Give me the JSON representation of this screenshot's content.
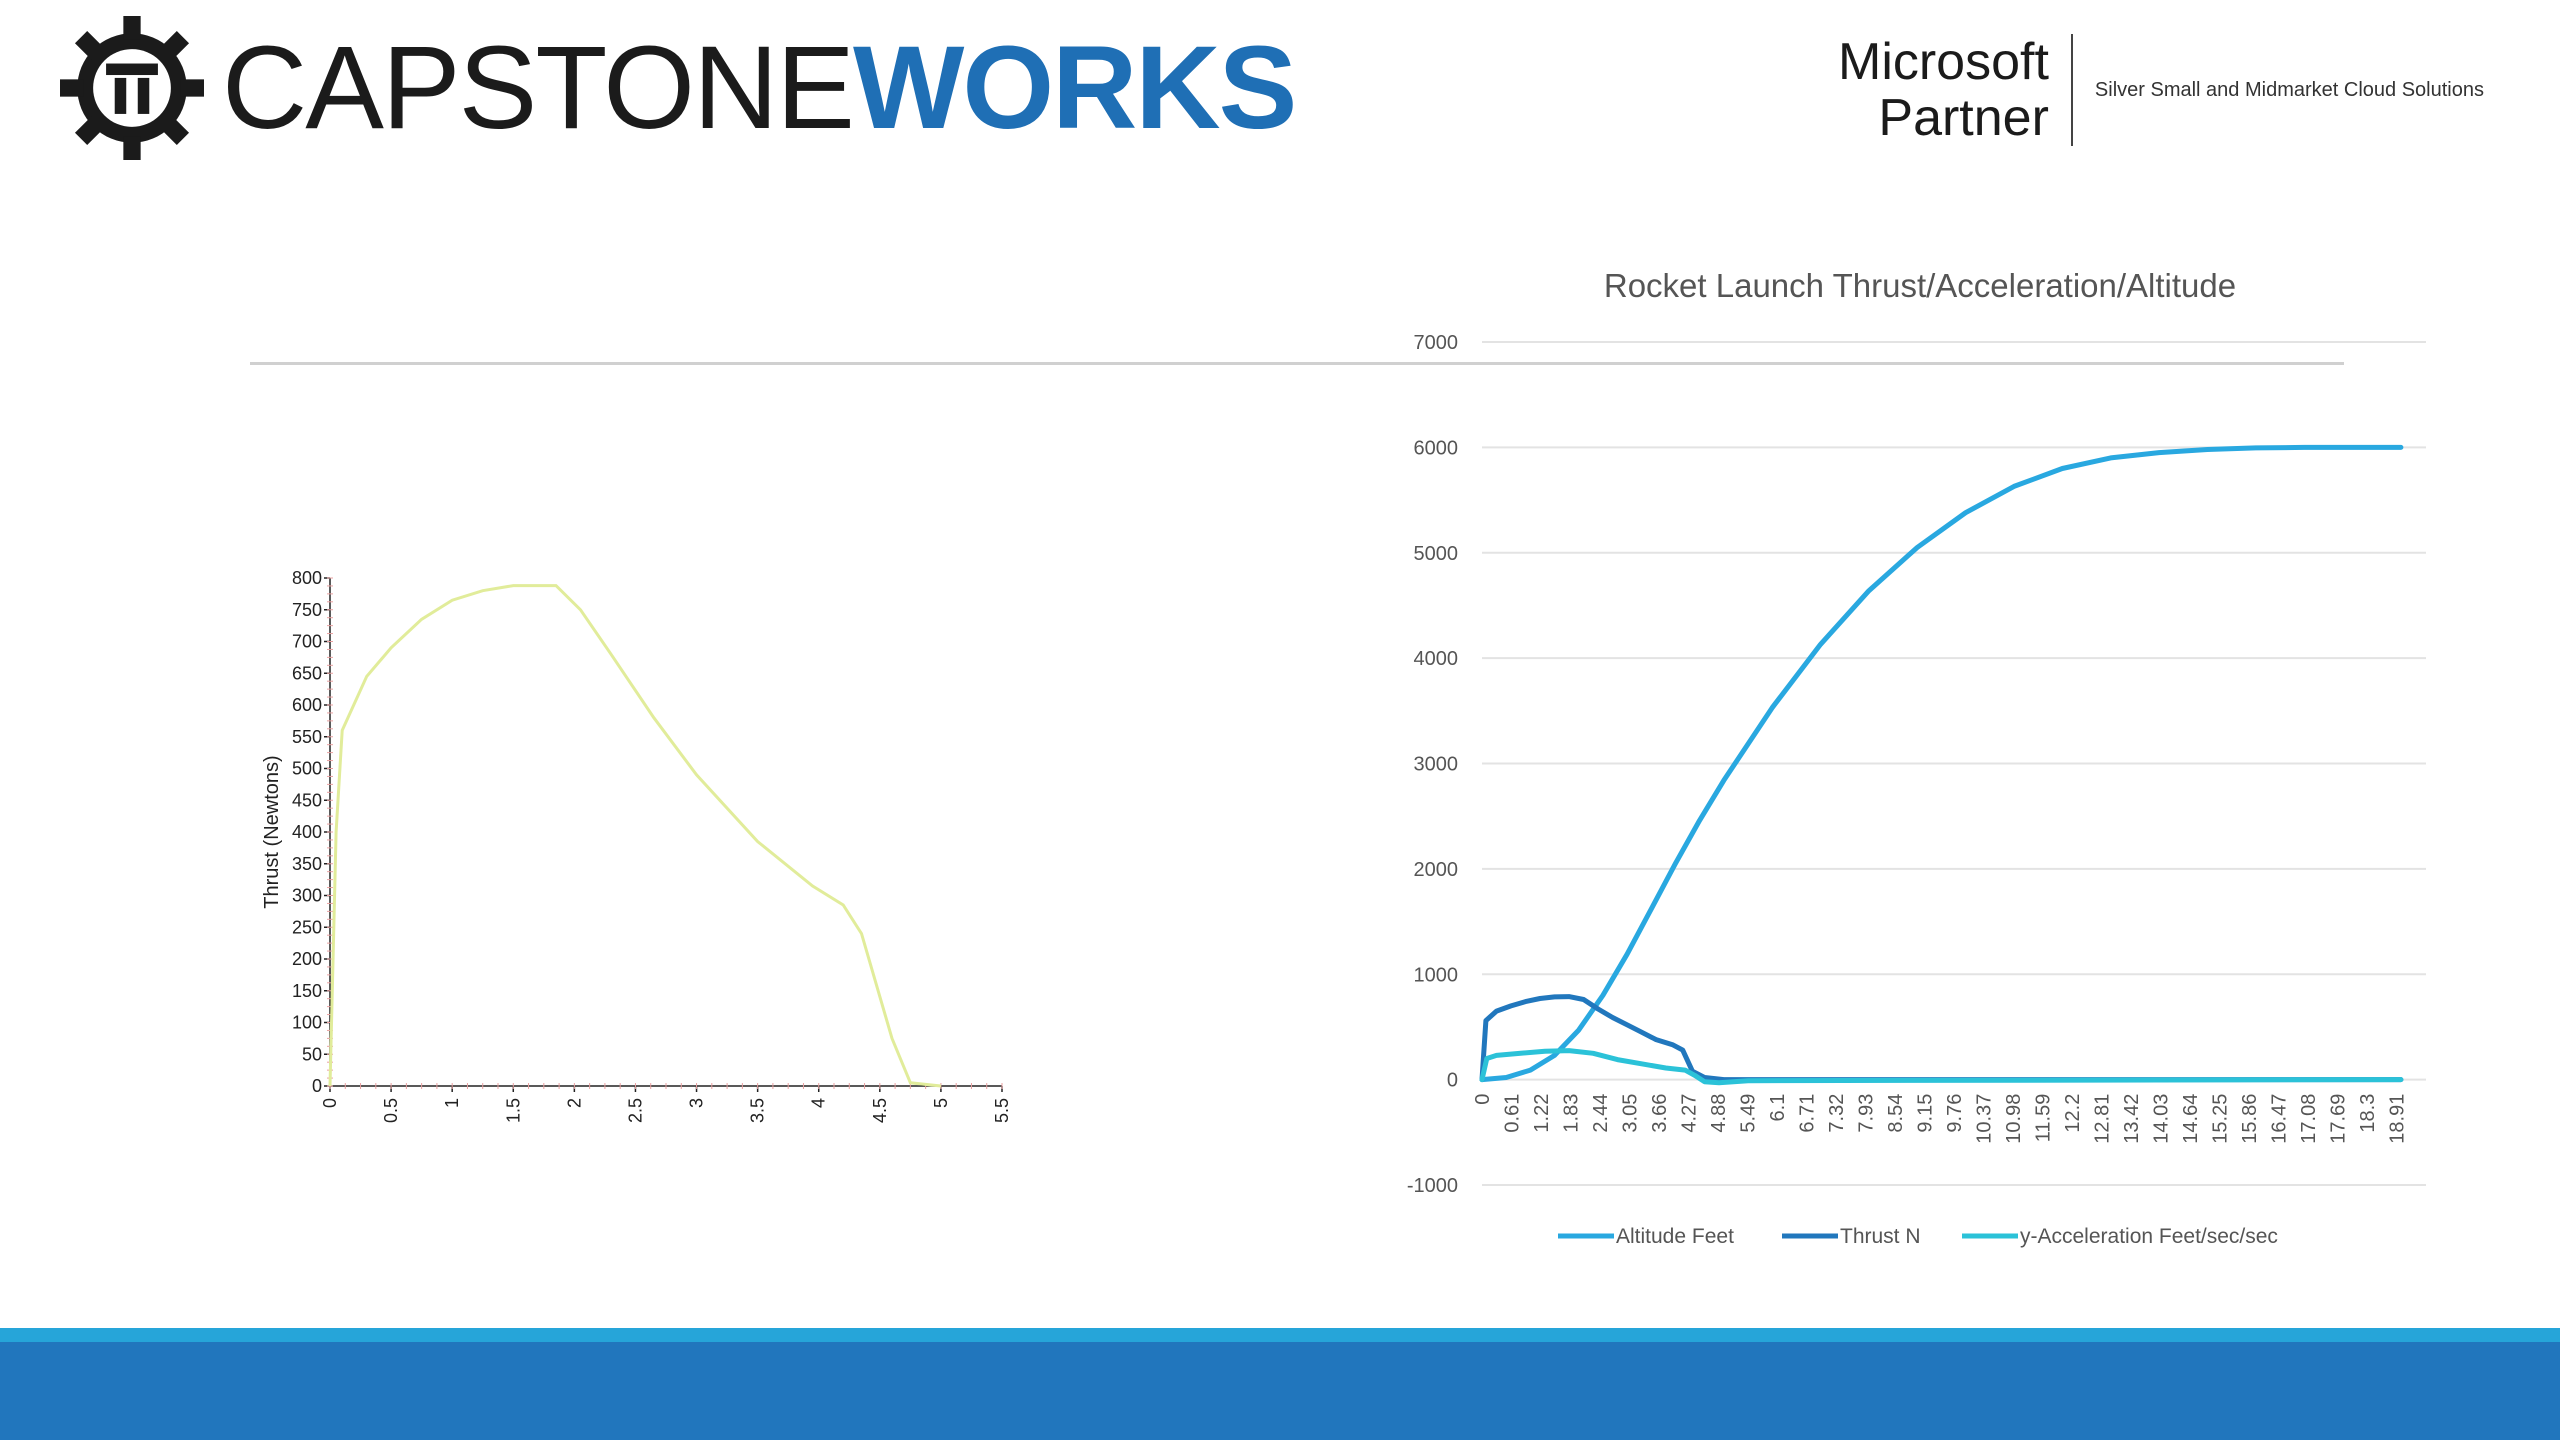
{
  "header": {
    "logo_part1": "CAPSTONE",
    "logo_part2": "WORKS",
    "partner_line1": "Microsoft",
    "partner_line2": "Partner",
    "partner_tagline": "Silver Small and Midmarket Cloud Solutions"
  },
  "colors": {
    "brand_blue": "#1f6fb5",
    "footer_blue": "#2176bd",
    "footer_accent": "#26a5d9",
    "thrust_curve": "#e1ec9a",
    "altitude": "#29a8e0",
    "thrust_n": "#2177bd",
    "accel": "#2bc2d8"
  },
  "chart_data": [
    {
      "type": "line",
      "title": "",
      "xlabel": "",
      "ylabel": "Thrust (Newtons)",
      "xlim": [
        0,
        5.5
      ],
      "ylim": [
        0,
        800
      ],
      "xticks": [
        "0",
        "0.5",
        "1",
        "1.5",
        "2",
        "2.5",
        "3",
        "3.5",
        "4",
        "4.5",
        "5",
        "5.5"
      ],
      "yticks": [
        "0",
        "50",
        "100",
        "150",
        "200",
        "250",
        "300",
        "350",
        "400",
        "450",
        "500",
        "550",
        "600",
        "650",
        "700",
        "750",
        "800"
      ],
      "series": [
        {
          "name": "Thrust",
          "x": [
            0,
            0.05,
            0.1,
            0.3,
            0.5,
            0.75,
            1.0,
            1.25,
            1.5,
            1.85,
            2.05,
            2.3,
            2.65,
            3.0,
            3.5,
            3.95,
            4.2,
            4.35,
            4.6,
            4.75,
            5.0
          ],
          "y": [
            0,
            400,
            560,
            645,
            690,
            735,
            765,
            780,
            788,
            788,
            750,
            680,
            580,
            490,
            385,
            315,
            285,
            240,
            75,
            5,
            0
          ]
        }
      ]
    },
    {
      "type": "line",
      "title": "Rocket Launch Thrust/Acceleration/Altitude",
      "xlabel": "",
      "ylabel": "",
      "ylim": [
        -1000,
        7000
      ],
      "yticks": [
        "-1000",
        "0",
        "1000",
        "2000",
        "3000",
        "4000",
        "5000",
        "6000",
        "7000"
      ],
      "categories": [
        "0",
        "0.61",
        "1.22",
        "1.83",
        "2.44",
        "3.05",
        "3.66",
        "4.27",
        "4.88",
        "5.49",
        "6.1",
        "6.71",
        "7.32",
        "7.93",
        "8.54",
        "9.15",
        "9.76",
        "10.37",
        "10.98",
        "11.59",
        "12.2",
        "12.81",
        "13.42",
        "14.03",
        "14.64",
        "15.25",
        "15.86",
        "16.47",
        "17.08",
        "17.69",
        "18.3",
        "18.91"
      ],
      "legend_position": "bottom",
      "series": [
        {
          "name": "Altitude Feet",
          "x": [
            0,
            0.5,
            1.0,
            1.5,
            2.0,
            2.5,
            3.0,
            3.5,
            4.0,
            4.5,
            5.0,
            6.0,
            7.0,
            8.0,
            9.0,
            10.0,
            11.0,
            12.0,
            13.0,
            14.0,
            15.0,
            16.0,
            17.0,
            18.0,
            19.0
          ],
          "y": [
            0,
            20,
            90,
            230,
            470,
            800,
            1190,
            1620,
            2050,
            2460,
            2840,
            3530,
            4130,
            4640,
            5050,
            5380,
            5630,
            5800,
            5900,
            5950,
            5980,
            5995,
            6000,
            6000,
            6000
          ]
        },
        {
          "name": "Thrust N",
          "x": [
            0,
            0.08,
            0.3,
            0.6,
            0.9,
            1.2,
            1.5,
            1.8,
            2.1,
            2.4,
            2.7,
            3.0,
            3.3,
            3.6,
            3.95,
            4.15,
            4.35,
            4.6,
            5.0,
            19.0
          ],
          "y": [
            0,
            560,
            650,
            700,
            740,
            770,
            785,
            788,
            760,
            670,
            590,
            520,
            450,
            380,
            330,
            280,
            80,
            20,
            0,
            0
          ]
        },
        {
          "name": "y-Acceleration Feet/sec/sec",
          "x": [
            0,
            0.1,
            0.3,
            0.8,
            1.3,
            1.8,
            2.3,
            2.8,
            3.3,
            3.8,
            4.2,
            4.4,
            4.6,
            4.9,
            5.5,
            19.0
          ],
          "y": [
            0,
            200,
            230,
            250,
            270,
            275,
            250,
            190,
            150,
            110,
            90,
            40,
            -20,
            -30,
            -10,
            0
          ]
        }
      ]
    }
  ]
}
